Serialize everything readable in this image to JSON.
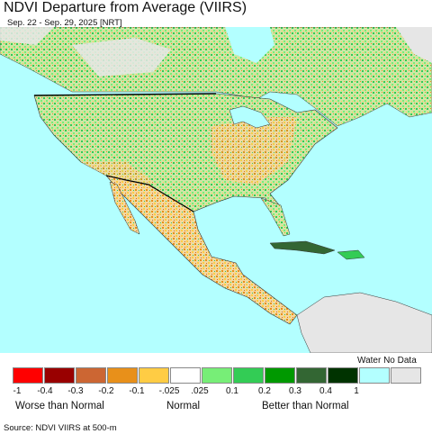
{
  "title": "NDVI Departure from Average (VIIRS)",
  "subtitle": "Sep. 22 - Sep. 29, 2025 [NRT]",
  "legend": {
    "no_data_label": "Water No Data",
    "colors": [
      "#ff0000",
      "#990000",
      "#cc6633",
      "#e8901a",
      "#ffcc44",
      "#ffffff",
      "#77ee77",
      "#33cc55",
      "#009900",
      "#336633",
      "#003300",
      "#b3ffff",
      "#e6e6e6"
    ],
    "ticks": [
      "-1",
      "-0.4",
      "-0.3",
      "-0.2",
      "-0.1",
      "-.025",
      ".025",
      "0.1",
      "0.2",
      "0.3",
      "0.4",
      "1"
    ],
    "categories": [
      "Worse than Normal",
      "Normal",
      "Better than Normal"
    ]
  },
  "source": "Source: NDVI VIIRS at 500-m",
  "map_colors": {
    "ocean": "#b3ffff",
    "land_mixed": "#d9e8b0",
    "green": "#33cc55",
    "light_green": "#77ee77",
    "dark_green": "#009900",
    "orange": "#e8901a",
    "yellow": "#ffcc44",
    "brown": "#cc6633",
    "gray": "#e6e6e6",
    "border": "#222222"
  }
}
